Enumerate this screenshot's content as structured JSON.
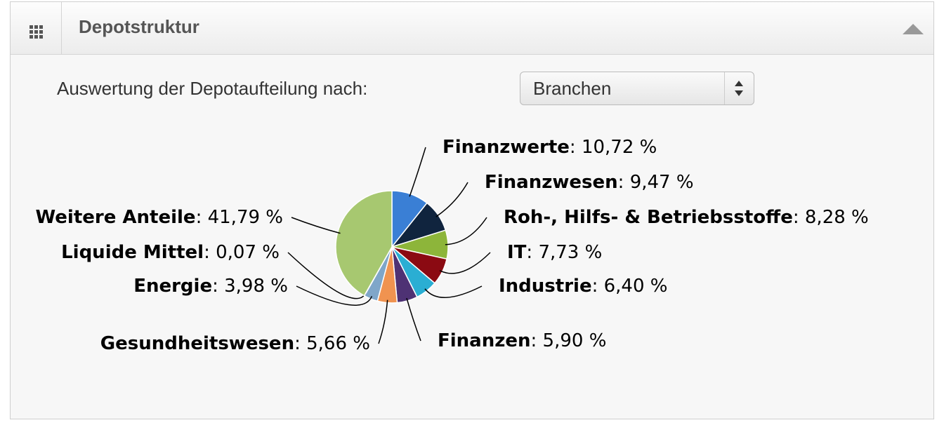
{
  "header": {
    "title": "Depotstruktur"
  },
  "form": {
    "label": "Auswertung der Depotaufteilung nach:",
    "select": "Branchen"
  },
  "chart_data": {
    "type": "pie",
    "categories": [
      "Finanzwerte",
      "Finanzwesen",
      "Roh-, Hilfs- & Betriebsstoffe",
      "IT",
      "Industrie",
      "Finanzen",
      "Gesundheitswesen",
      "Energie",
      "Liquide Mittel",
      "Weitere Anteile"
    ],
    "values": [
      10.72,
      9.47,
      8.28,
      7.73,
      6.4,
      5.9,
      5.66,
      3.98,
      0.07,
      41.79
    ],
    "value_labels": [
      "10,72 %",
      "9,47 %",
      "8,28 %",
      "7,73 %",
      "6,40 %",
      "5,90 %",
      "5,66 %",
      "3,98 %",
      "0,07 %",
      "41,79 %"
    ],
    "colors": [
      "#3a7fd5",
      "#10243e",
      "#8db53a",
      "#8b0a12",
      "#2aaed3",
      "#4e3274",
      "#f09350",
      "#7fa6c9",
      "#c0504d",
      "#a7c870"
    ]
  }
}
